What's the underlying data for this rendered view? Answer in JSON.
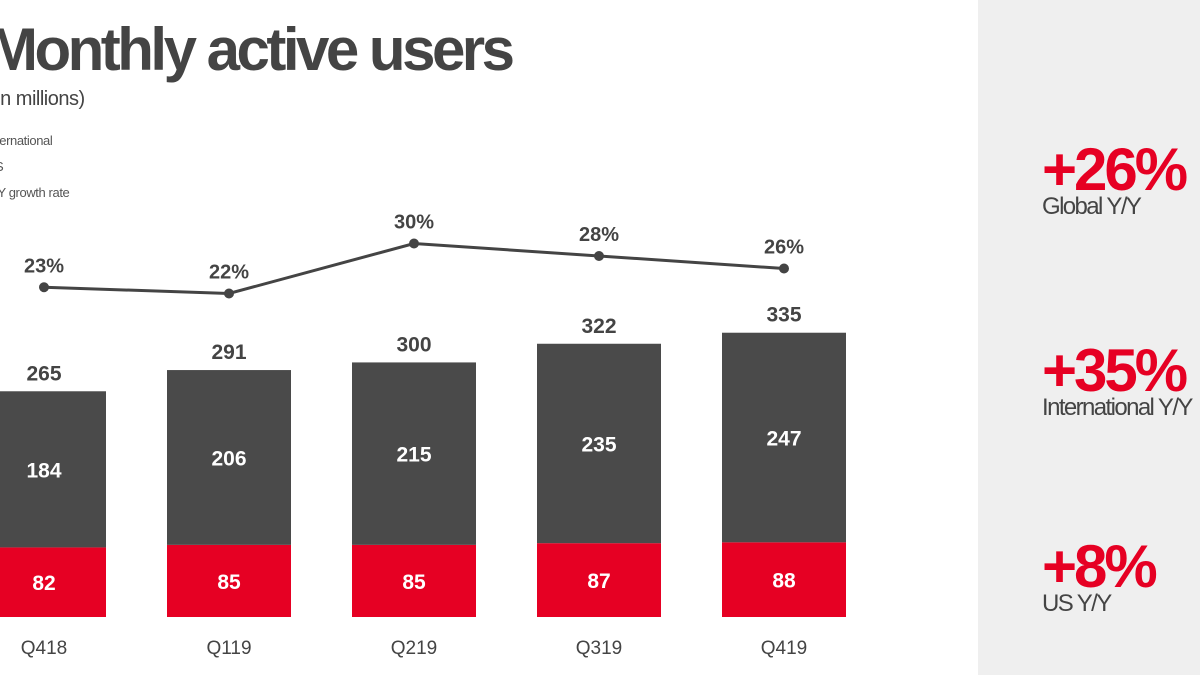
{
  "title": "Monthly active users",
  "subtitle": "(in millions)",
  "legend": {
    "international": "International",
    "us": "US",
    "growth": "Y/Y growth rate"
  },
  "colors": {
    "international": "#4a4a4a",
    "us": "#e60023",
    "line": "#444444",
    "accent": "#e60023"
  },
  "chart_data": {
    "type": "bar",
    "stacked": true,
    "categories": [
      "Q418",
      "Q119",
      "Q219",
      "Q319",
      "Q419"
    ],
    "series": [
      {
        "name": "US",
        "values": [
          82,
          85,
          85,
          87,
          88
        ]
      },
      {
        "name": "International",
        "values": [
          184,
          206,
          215,
          235,
          247
        ]
      }
    ],
    "totals": [
      "265",
      "291",
      "300",
      "322",
      "335"
    ],
    "line_series": {
      "name": "Y/Y growth rate",
      "values": [
        23,
        22,
        30,
        28,
        26
      ],
      "labels": [
        "23%",
        "22%",
        "30%",
        "28%",
        "26%"
      ]
    },
    "title": "Monthly active users",
    "subtitle": "(in millions)"
  },
  "kpis": [
    {
      "value": "+26%",
      "label": "Global Y/Y"
    },
    {
      "value": "+35%",
      "label": "International Y/Y"
    },
    {
      "value": "+8%",
      "label": "US Y/Y"
    }
  ]
}
